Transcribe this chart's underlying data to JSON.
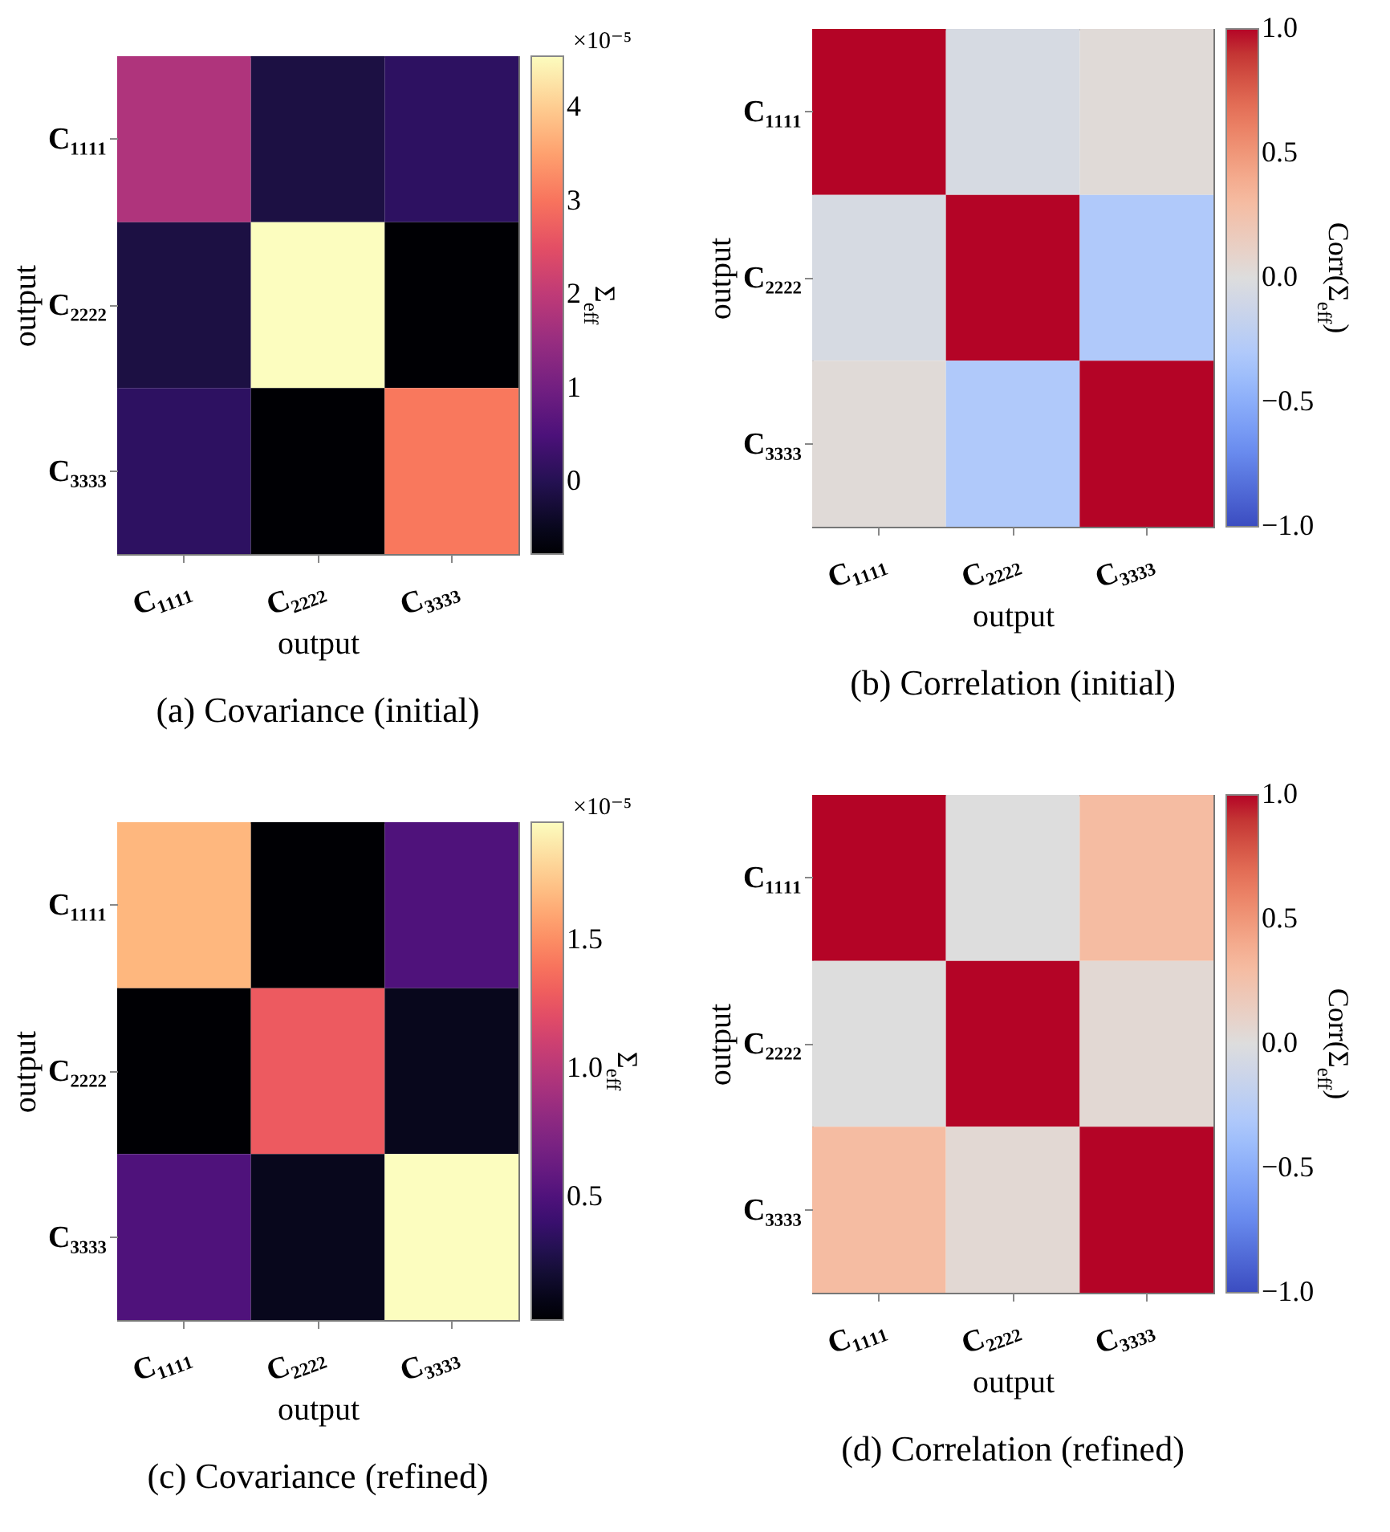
{
  "chart_data": [
    {
      "type": "heatmap",
      "title": "(a)  Covariance (initial)",
      "xlabel": "output",
      "ylabel": "output",
      "clabel": "Σ$_{eff}$",
      "annotations": [
        "×10⁻⁵"
      ],
      "categories": [
        "C₁₁₁₁",
        "C₂₂₂₂",
        "C₃₃₃₃"
      ],
      "y_categories": [
        "C₁₁₁₁",
        "C₂₂₂₂",
        "C₃₃₃₃"
      ],
      "cells": [
        [
          1.8,
          -0.13,
          0.13
        ],
        [
          -0.13,
          4.55,
          -0.77
        ],
        [
          0.13,
          -0.77,
          3.05
        ]
      ],
      "clim": [
        -0.77,
        4.55
      ],
      "cticks": [
        0,
        1,
        2,
        3,
        4
      ]
    },
    {
      "type": "heatmap",
      "title": "(b)  Correlation (initial)",
      "ylabel": "output",
      "xlabel": "output",
      "clabel": "Corr(Σ$_{eff}$)",
      "categories": [
        "C₁₁₁₁",
        "C₂₂₂₂",
        "C₃₃₃₃"
      ],
      "y_categories": [
        "C₁₁₁₁",
        "C₂₂₂₂",
        "C₃₃₃₃"
      ],
      "cells": [
        [
          1,
          -0.05,
          0.03
        ],
        [
          -0.05,
          1,
          -0.3
        ],
        [
          0.03,
          -0.3,
          1
        ]
      ],
      "clim": [
        -1,
        1
      ],
      "cticks": [
        {
          "value": -1,
          "label": "−1.0"
        },
        {
          "value": -0.5,
          "label": "−0.5"
        },
        {
          "value": 0,
          "label": "0.0"
        },
        0.5,
        {
          "value": 1,
          "label": "1.0"
        }
      ]
    },
    {
      "type": "heatmap",
      "title": "(c)  Covariance (refined)",
      "xlabel": "output",
      "ylabel": "output",
      "clabel": "Σ$_{eff}$",
      "annotations": [
        "×10⁻⁵"
      ],
      "categories": [
        "C₁₁₁₁",
        "C₂₂₂₂",
        "C₃₃₃₃"
      ],
      "y_categories": [
        "C₁₁₁₁",
        "C₂₂₂₂",
        "C₃₃₃₃"
      ],
      "cells": [
        [
          1.67,
          0.02,
          0.5
        ],
        [
          0.02,
          1.28,
          0.12
        ],
        [
          0.5,
          0.12,
          1.96
        ]
      ],
      "clim": [
        0.02,
        1.96
      ],
      "cticks": [
        0.5,
        {
          "value": 1,
          "label": "1.0"
        },
        1.5
      ]
    },
    {
      "type": "heatmap",
      "title": "(d)  Correlation (refined)",
      "xlabel": "output",
      "ylabel": "output",
      "clabel": "Corr(Σ$_{eff}$)",
      "categories": [
        "C₁₁₁₁",
        "C₂₂₂₂",
        "C₃₃₃₃"
      ],
      "y_categories": [
        "C₁₁₁₁",
        "C₂₂₂₂",
        "C₃₃₃₃"
      ],
      "cells": [
        [
          1,
          0,
          0.3
        ],
        [
          0,
          1,
          0.05
        ],
        [
          0.3,
          0.05,
          1
        ]
      ],
      "clim": [
        -1,
        1
      ],
      "cticks": [
        {
          "value": -1,
          "label": "−1.0"
        },
        {
          "value": -0.5,
          "label": "−0.5"
        },
        {
          "value": 0,
          "label": "0.0"
        },
        0.5,
        {
          "value": 1,
          "label": "1.0"
        }
      ]
    }
  ]
}
